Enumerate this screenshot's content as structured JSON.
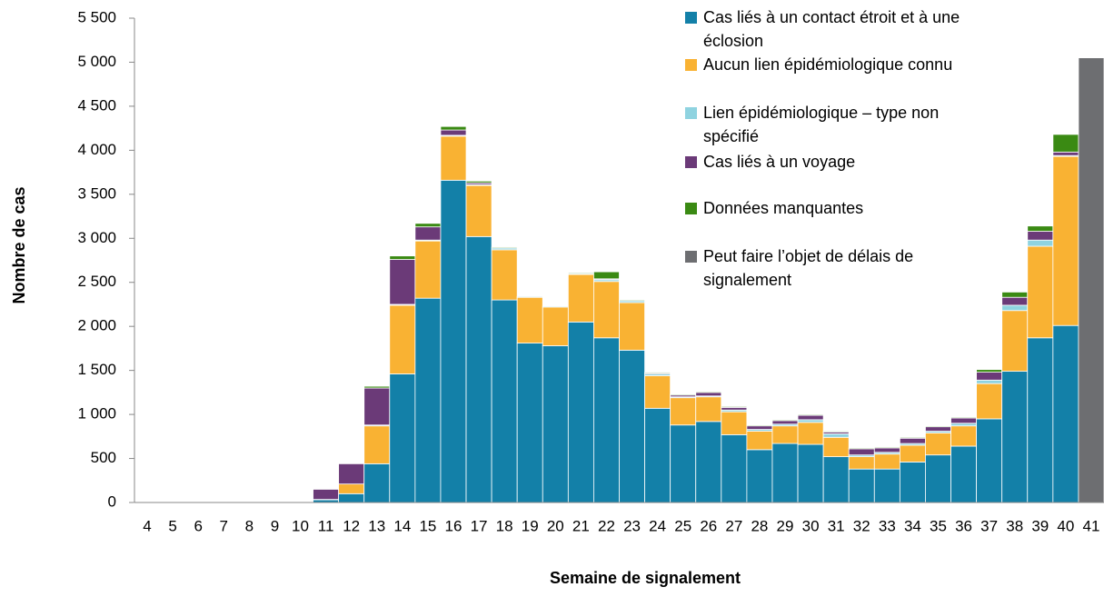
{
  "chart_data": {
    "type": "stacked_bar",
    "y_label": "Nombre de cas",
    "x_label": "Semaine de signalement",
    "categories": [
      "4",
      "5",
      "6",
      "7",
      "8",
      "9",
      "10",
      "11",
      "12",
      "13",
      "14",
      "15",
      "16",
      "17",
      "18",
      "19",
      "20",
      "21",
      "22",
      "23",
      "24",
      "25",
      "26",
      "27",
      "28",
      "29",
      "30",
      "31",
      "32",
      "33",
      "34",
      "35",
      "36",
      "37",
      "38",
      "39",
      "40",
      "41"
    ],
    "series": [
      {
        "name": "Cas liés à un contact étroit et à une éclosion",
        "color": "#1380a8",
        "values": [
          5,
          2,
          2,
          2,
          5,
          5,
          5,
          30,
          100,
          440,
          1460,
          2320,
          3660,
          3020,
          2300,
          1810,
          1780,
          2050,
          1870,
          1730,
          1070,
          880,
          920,
          770,
          600,
          670,
          660,
          520,
          380,
          380,
          460,
          540,
          640,
          950,
          1490,
          1870,
          2010,
          0
        ]
      },
      {
        "name": "Aucun lien épidémiologique connu",
        "color": "#f9b233",
        "values": [
          0,
          0,
          0,
          0,
          0,
          0,
          0,
          5,
          110,
          430,
          780,
          650,
          500,
          580,
          570,
          520,
          440,
          540,
          640,
          540,
          370,
          310,
          280,
          260,
          210,
          200,
          250,
          220,
          140,
          170,
          190,
          250,
          230,
          400,
          690,
          1040,
          1920,
          0
        ]
      },
      {
        "name": "Lien épidémiologique – type non spécifié",
        "color": "#8fd3e0",
        "values": [
          0,
          0,
          0,
          0,
          0,
          0,
          0,
          0,
          0,
          10,
          10,
          10,
          10,
          10,
          20,
          10,
          10,
          10,
          20,
          20,
          20,
          10,
          10,
          20,
          20,
          20,
          30,
          40,
          20,
          20,
          20,
          20,
          30,
          40,
          60,
          70,
          10,
          0
        ]
      },
      {
        "name": "Cas liés à un voyage",
        "color": "#6b3a78",
        "values": [
          0,
          0,
          0,
          0,
          0,
          0,
          0,
          115,
          230,
          420,
          510,
          150,
          60,
          20,
          0,
          0,
          0,
          0,
          10,
          0,
          10,
          20,
          40,
          30,
          40,
          40,
          50,
          20,
          70,
          50,
          60,
          50,
          60,
          90,
          90,
          100,
          40,
          0
        ]
      },
      {
        "name": "Données manquantes",
        "color": "#3a8a13",
        "values": [
          0,
          0,
          0,
          0,
          0,
          0,
          0,
          0,
          0,
          20,
          40,
          40,
          40,
          20,
          10,
          0,
          0,
          10,
          80,
          10,
          10,
          10,
          10,
          10,
          10,
          10,
          10,
          10,
          10,
          10,
          10,
          10,
          10,
          30,
          60,
          60,
          200,
          0
        ]
      },
      {
        "name": "Peut faire l’objet de délais de signalement",
        "color": "#6d6e71",
        "values": [
          0,
          0,
          0,
          0,
          0,
          0,
          0,
          0,
          0,
          0,
          0,
          0,
          0,
          0,
          0,
          0,
          0,
          0,
          0,
          0,
          0,
          0,
          0,
          0,
          0,
          0,
          0,
          0,
          0,
          0,
          0,
          0,
          0,
          0,
          0,
          0,
          0,
          5050
        ]
      }
    ],
    "ylim": [
      0,
      5500
    ],
    "yticks": [
      0,
      500,
      {
        "value": 1000,
        "label": "1 000"
      },
      {
        "value": 1500,
        "label": "1 500"
      },
      {
        "value": 2000,
        "label": "2 000"
      },
      {
        "value": 2500,
        "label": "2 500"
      },
      {
        "value": 3000,
        "label": "3 000"
      },
      {
        "value": 3500,
        "label": "3 500"
      },
      {
        "value": 4000,
        "label": "4 000"
      },
      {
        "value": 4500,
        "label": "4 500"
      },
      {
        "value": 5000,
        "label": "5 000"
      },
      {
        "value": 5500,
        "label": "5 500"
      }
    ]
  }
}
